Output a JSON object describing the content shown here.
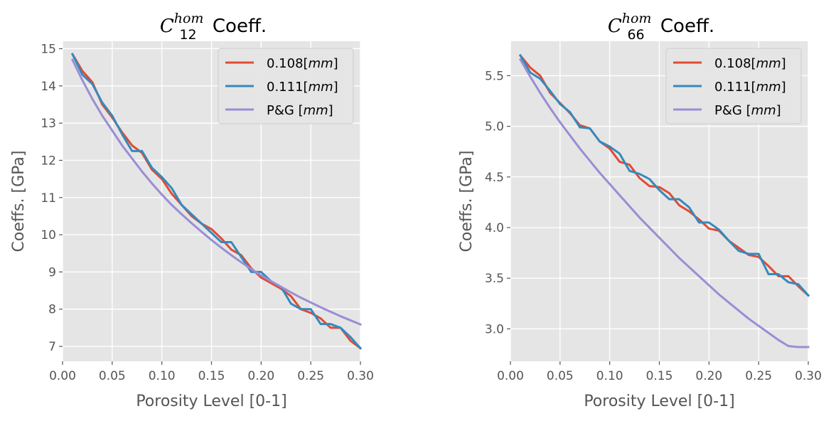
{
  "chart_data": [
    {
      "type": "line",
      "title": "C_12^hom Coeff.",
      "title_parts": {
        "symbol": "C",
        "sub": "12",
        "sup": "hom",
        "suffix": " Coeff."
      },
      "xlabel": "Porosity Level [0-1]",
      "ylabel": "Coeffs. [GPa]",
      "xlim": [
        0.0,
        0.3
      ],
      "ylim": [
        6.6,
        15.2
      ],
      "xticks": [
        0.0,
        0.05,
        0.1,
        0.15,
        0.2,
        0.25,
        0.3
      ],
      "xtick_labels": [
        "0.00",
        "0.05",
        "0.10",
        "0.15",
        "0.20",
        "0.25",
        "0.30"
      ],
      "yticks": [
        7,
        8,
        9,
        10,
        11,
        12,
        13,
        14,
        15
      ],
      "ytick_labels": [
        "7",
        "8",
        "9",
        "10",
        "11",
        "12",
        "13",
        "14",
        "15"
      ],
      "grid": true,
      "legend_position": "top-right",
      "series": [
        {
          "name": "0.108[mm]",
          "label_num": "0.108",
          "label_unit": "mm",
          "color": "#e24a33",
          "x": [
            0.01,
            0.02,
            0.03,
            0.04,
            0.05,
            0.06,
            0.07,
            0.08,
            0.09,
            0.1,
            0.11,
            0.12,
            0.13,
            0.14,
            0.15,
            0.16,
            0.17,
            0.18,
            0.19,
            0.2,
            0.21,
            0.22,
            0.23,
            0.24,
            0.25,
            0.26,
            0.27,
            0.28,
            0.29,
            0.3
          ],
          "y": [
            14.85,
            14.4,
            14.1,
            13.5,
            13.15,
            12.75,
            12.4,
            12.2,
            11.75,
            11.5,
            11.1,
            10.8,
            10.5,
            10.3,
            10.15,
            9.9,
            9.6,
            9.45,
            9.1,
            8.85,
            8.7,
            8.55,
            8.35,
            8.0,
            7.9,
            7.75,
            7.5,
            7.5,
            7.15,
            6.95
          ]
        },
        {
          "name": "0.111[mm]",
          "label_num": "0.111",
          "label_unit": "mm",
          "color": "#348abd",
          "x": [
            0.01,
            0.02,
            0.03,
            0.04,
            0.05,
            0.06,
            0.07,
            0.08,
            0.09,
            0.1,
            0.11,
            0.12,
            0.13,
            0.14,
            0.15,
            0.16,
            0.17,
            0.18,
            0.19,
            0.2,
            0.21,
            0.22,
            0.23,
            0.24,
            0.25,
            0.26,
            0.27,
            0.28,
            0.29,
            0.3
          ],
          "y": [
            14.85,
            14.3,
            14.05,
            13.55,
            13.2,
            12.7,
            12.25,
            12.25,
            11.8,
            11.55,
            11.25,
            10.8,
            10.55,
            10.3,
            10.05,
            9.8,
            9.8,
            9.4,
            9.0,
            9.0,
            8.75,
            8.6,
            8.15,
            8.0,
            8.0,
            7.6,
            7.6,
            7.5,
            7.25,
            6.95
          ]
        },
        {
          "name": "P&G [mm]",
          "label_num": "P&G ",
          "label_unit": "mm",
          "color": "#988ed5",
          "x": [
            0.01,
            0.02,
            0.03,
            0.04,
            0.05,
            0.06,
            0.07,
            0.08,
            0.09,
            0.1,
            0.11,
            0.12,
            0.13,
            0.14,
            0.15,
            0.16,
            0.17,
            0.18,
            0.19,
            0.2,
            0.21,
            0.22,
            0.23,
            0.24,
            0.25,
            0.26,
            0.27,
            0.28,
            0.29,
            0.3
          ],
          "y": [
            14.7,
            14.15,
            13.65,
            13.2,
            12.8,
            12.4,
            12.05,
            11.7,
            11.38,
            11.08,
            10.8,
            10.55,
            10.31,
            10.08,
            9.86,
            9.65,
            9.45,
            9.26,
            9.08,
            8.91,
            8.75,
            8.6,
            8.45,
            8.31,
            8.18,
            8.05,
            7.93,
            7.81,
            7.7,
            7.59
          ]
        }
      ]
    },
    {
      "type": "line",
      "title": "C_66^hom Coeff.",
      "title_parts": {
        "symbol": "C",
        "sub": "66",
        "sup": "hom",
        "suffix": " Coeff."
      },
      "xlabel": "Porosity Level [0-1]",
      "ylabel": "Coeffs. [GPa]",
      "xlim": [
        0.0,
        0.3
      ],
      "ylim": [
        2.68,
        5.84
      ],
      "xticks": [
        0.0,
        0.05,
        0.1,
        0.15,
        0.2,
        0.25,
        0.3
      ],
      "xtick_labels": [
        "0.00",
        "0.05",
        "0.10",
        "0.15",
        "0.20",
        "0.25",
        "0.30"
      ],
      "yticks": [
        3.0,
        3.5,
        4.0,
        4.5,
        5.0,
        5.5
      ],
      "ytick_labels": [
        "3.0",
        "3.5",
        "4.0",
        "4.5",
        "5.0",
        "5.5"
      ],
      "grid": true,
      "legend_position": "top-right",
      "series": [
        {
          "name": "0.108[mm]",
          "label_num": "0.108",
          "label_unit": "mm",
          "color": "#e24a33",
          "x": [
            0.01,
            0.02,
            0.03,
            0.04,
            0.05,
            0.06,
            0.07,
            0.08,
            0.09,
            0.1,
            0.11,
            0.12,
            0.13,
            0.14,
            0.15,
            0.16,
            0.17,
            0.18,
            0.19,
            0.2,
            0.21,
            0.22,
            0.23,
            0.24,
            0.25,
            0.26,
            0.27,
            0.28,
            0.29,
            0.3
          ],
          "y": [
            5.7,
            5.58,
            5.5,
            5.33,
            5.23,
            5.13,
            5.01,
            4.98,
            4.85,
            4.78,
            4.65,
            4.62,
            4.49,
            4.41,
            4.4,
            4.34,
            4.22,
            4.16,
            4.08,
            3.99,
            3.97,
            3.87,
            3.8,
            3.73,
            3.71,
            3.62,
            3.52,
            3.52,
            3.42,
            3.33
          ]
        },
        {
          "name": "0.111[mm]",
          "label_num": "0.111",
          "label_unit": "mm",
          "color": "#348abd",
          "x": [
            0.01,
            0.02,
            0.03,
            0.04,
            0.05,
            0.06,
            0.07,
            0.08,
            0.09,
            0.1,
            0.11,
            0.12,
            0.13,
            0.14,
            0.15,
            0.16,
            0.17,
            0.18,
            0.19,
            0.2,
            0.21,
            0.22,
            0.23,
            0.24,
            0.25,
            0.26,
            0.27,
            0.28,
            0.29,
            0.3
          ],
          "y": [
            5.7,
            5.53,
            5.47,
            5.35,
            5.22,
            5.14,
            4.99,
            4.98,
            4.85,
            4.8,
            4.73,
            4.56,
            4.53,
            4.48,
            4.37,
            4.28,
            4.28,
            4.2,
            4.05,
            4.05,
            3.98,
            3.87,
            3.77,
            3.74,
            3.74,
            3.54,
            3.54,
            3.46,
            3.44,
            3.33
          ]
        },
        {
          "name": "P&G [mm]",
          "label_num": "P&G ",
          "label_unit": "mm",
          "color": "#988ed5",
          "x": [
            0.01,
            0.02,
            0.03,
            0.04,
            0.05,
            0.06,
            0.07,
            0.08,
            0.09,
            0.1,
            0.11,
            0.12,
            0.13,
            0.14,
            0.15,
            0.16,
            0.17,
            0.18,
            0.19,
            0.2,
            0.21,
            0.22,
            0.23,
            0.24,
            0.25,
            0.26,
            0.27,
            0.28,
            0.29,
            0.3
          ],
          "y": [
            5.66,
            5.49,
            5.33,
            5.18,
            5.04,
            4.91,
            4.78,
            4.66,
            4.54,
            4.43,
            4.32,
            4.21,
            4.1,
            4.0,
            3.9,
            3.8,
            3.7,
            3.61,
            3.52,
            3.43,
            3.34,
            3.26,
            3.18,
            3.1,
            3.03,
            2.96,
            2.89,
            2.83,
            2.82,
            2.82
          ]
        }
      ]
    }
  ]
}
